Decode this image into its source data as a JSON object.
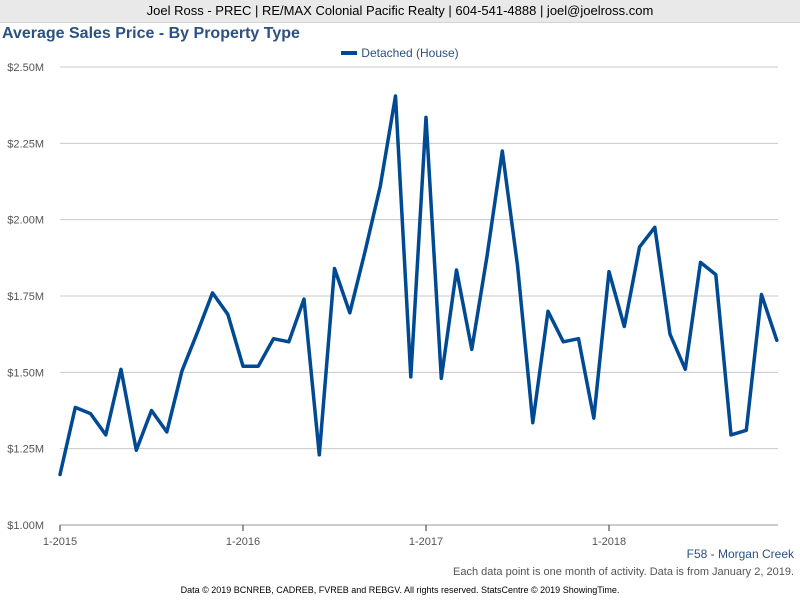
{
  "header": {
    "agent_line": "Joel Ross - PREC | RE/MAX Colonial Pacific Realty | 604-541-4888 | joel@joelross.com"
  },
  "footer": {
    "area": "F58 - Morgan Creek",
    "note": "Each data point is one month of activity. Data is from January 2, 2019.",
    "copyright": "Data © 2019 BCNREB, CADREB, FVREB and REBGV. All rights reserved. StatsCentre © 2019 ShowingTime."
  },
  "colors": {
    "series": "#004a93",
    "title": "#2a5180",
    "grid": "#c8c8c8"
  },
  "chart_data": {
    "type": "line",
    "title": "Average Sales Price - By Property Type",
    "x_start": "2015-01",
    "x_ticks": [
      "1-2015",
      "1-2016",
      "1-2017",
      "1-2018"
    ],
    "y_ticks": [
      "$1.00M",
      "$1.25M",
      "$1.50M",
      "$1.75M",
      "$2.00M",
      "$2.25M",
      "$2.50M"
    ],
    "ylim": [
      1.0,
      2.5
    ],
    "y_unit": "$M",
    "legend_position": "top-center",
    "grid": true,
    "series": [
      {
        "name": "Detached (House)",
        "x": [
          "2015-01",
          "2015-02",
          "2015-03",
          "2015-04",
          "2015-05",
          "2015-06",
          "2015-07",
          "2015-08",
          "2015-09",
          "2015-10",
          "2015-11",
          "2015-12",
          "2016-01",
          "2016-02",
          "2016-03",
          "2016-04",
          "2016-05",
          "2016-06",
          "2016-07",
          "2016-08",
          "2016-09",
          "2016-10",
          "2016-11",
          "2016-12",
          "2017-01",
          "2017-02",
          "2017-03",
          "2017-04",
          "2017-05",
          "2017-06",
          "2017-07",
          "2017-08",
          "2017-09",
          "2017-10",
          "2017-11",
          "2017-12",
          "2018-01",
          "2018-02",
          "2018-03",
          "2018-04",
          "2018-05",
          "2018-06",
          "2018-07",
          "2018-08",
          "2018-09",
          "2018-10",
          "2018-11",
          "2018-12"
        ],
        "values": [
          1.165,
          1.385,
          1.365,
          1.295,
          1.51,
          1.245,
          1.375,
          1.305,
          1.505,
          1.63,
          1.76,
          1.69,
          1.52,
          1.52,
          1.61,
          1.6,
          1.74,
          1.23,
          1.84,
          1.695,
          1.895,
          2.11,
          2.405,
          1.485,
          2.335,
          1.48,
          1.835,
          1.575,
          1.88,
          2.225,
          1.85,
          1.335,
          1.7,
          1.6,
          1.61,
          1.35,
          1.83,
          1.65,
          1.91,
          1.975,
          1.625,
          1.51,
          1.86,
          1.82,
          1.295,
          1.31,
          1.755,
          1.605
        ]
      }
    ]
  }
}
